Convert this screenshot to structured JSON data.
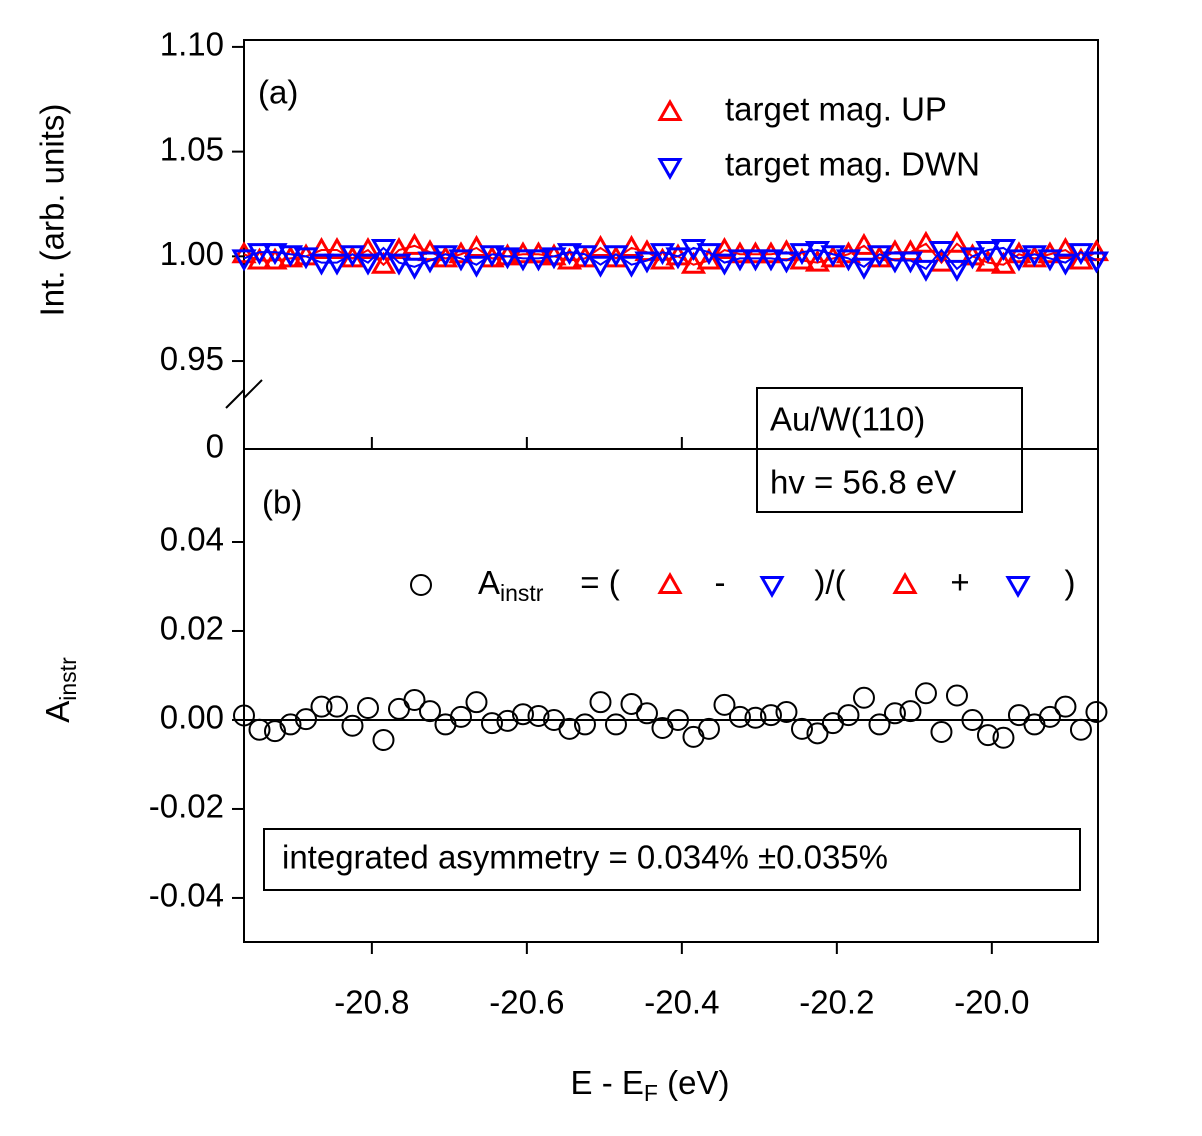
{
  "chart_data": [
    {
      "type": "line",
      "panel_label": "(a)",
      "ylabel": "Int. (arb. units)",
      "xlim": [
        -20.965,
        -19.863
      ],
      "ylim": [
        0.908,
        1.1033
      ],
      "yticks": [
        0.95,
        {
          "value": 1,
          "label": "1.00"
        },
        1.05,
        {
          "value": 1.1,
          "label": "1.10"
        }
      ],
      "break_tick": 0,
      "x": [
        -20.965,
        -20.945,
        -20.925,
        -20.905,
        -20.885,
        -20.865,
        -20.845,
        -20.825,
        -20.805,
        -20.785,
        -20.765,
        -20.745,
        -20.725,
        -20.705,
        -20.685,
        -20.665,
        -20.645,
        -20.625,
        -20.605,
        -20.585,
        -20.565,
        -20.545,
        -20.525,
        -20.505,
        -20.485,
        -20.465,
        -20.445,
        -20.425,
        -20.405,
        -20.385,
        -20.365,
        -20.345,
        -20.325,
        -20.305,
        -20.285,
        -20.265,
        -20.245,
        -20.225,
        -20.205,
        -20.185,
        -20.165,
        -20.145,
        -20.125,
        -20.105,
        -20.085,
        -20.065,
        -20.045,
        -20.025,
        -20.005,
        -19.985,
        -19.965,
        -19.945,
        -19.925,
        -19.905,
        -19.885,
        -19.865
      ],
      "series": [
        {
          "name": "target mag. UP",
          "color": "#ff0000",
          "marker": "triangle-up",
          "values": [
            1.001,
            0.998,
            0.998,
            0.999,
            1.0,
            1.003,
            1.003,
            0.999,
            1.003,
            0.996,
            1.003,
            1.005,
            1.002,
            0.999,
            1.001,
            1.004,
            0.999,
            1.0,
            1.001,
            1.001,
            1.0,
            0.998,
            0.999,
            1.004,
            0.999,
            1.004,
            1.002,
            0.998,
            1.0,
            0.996,
            0.998,
            1.003,
            1.001,
            1.001,
            1.001,
            1.002,
            0.998,
            0.997,
            0.999,
            1.001,
            1.005,
            0.999,
            1.002,
            1.002,
            1.006,
            0.997,
            1.006,
            1.0,
            0.997,
            0.996,
            1.001,
            0.999,
            1.001,
            1.003,
            0.998,
            1.002
          ]
        },
        {
          "name": "target mag. DWN",
          "color": "#0000ff",
          "marker": "triangle-down",
          "values": [
            0.999,
            1.002,
            1.002,
            1.001,
            1.0,
            0.997,
            0.997,
            1.001,
            0.997,
            1.004,
            0.997,
            0.995,
            0.998,
            1.001,
            0.999,
            0.996,
            1.001,
            1.0,
            0.999,
            0.999,
            1.0,
            1.002,
            1.001,
            0.996,
            1.001,
            0.996,
            0.998,
            1.002,
            1.0,
            1.004,
            1.002,
            0.997,
            0.999,
            0.999,
            0.999,
            0.998,
            1.002,
            1.003,
            1.001,
            0.999,
            0.995,
            1.001,
            0.998,
            0.998,
            0.994,
            1.003,
            0.994,
            1.0,
            1.003,
            1.004,
            0.999,
            1.001,
            0.999,
            0.997,
            1.002,
            0.998
          ]
        }
      ],
      "annotation": [
        "Au/W(110)",
        "hv = 56.8 eV"
      ]
    },
    {
      "type": "scatter",
      "panel_label": "(b)",
      "ylabel": "A",
      "ylabel_sub": "instr",
      "xlabel": [
        "E - E",
        "F",
        " (eV)"
      ],
      "xlim": [
        -20.965,
        -19.863
      ],
      "ylim": [
        -0.0499,
        0.0609
      ],
      "xticks": [
        -20.8,
        -20.6,
        -20.4,
        -20.2,
        {
          "value": -20,
          "label": "-20.0"
        }
      ],
      "yticks": [
        -0.04,
        -0.02,
        {
          "value": 0,
          "label": "0.00"
        },
        0.02,
        0.04
      ],
      "hline": 0,
      "x": [
        -20.965,
        -20.945,
        -20.925,
        -20.905,
        -20.885,
        -20.865,
        -20.845,
        -20.825,
        -20.805,
        -20.785,
        -20.765,
        -20.745,
        -20.725,
        -20.705,
        -20.685,
        -20.665,
        -20.645,
        -20.625,
        -20.605,
        -20.585,
        -20.565,
        -20.545,
        -20.525,
        -20.505,
        -20.485,
        -20.465,
        -20.445,
        -20.425,
        -20.405,
        -20.385,
        -20.365,
        -20.345,
        -20.325,
        -20.305,
        -20.285,
        -20.265,
        -20.245,
        -20.225,
        -20.205,
        -20.185,
        -20.165,
        -20.145,
        -20.125,
        -20.105,
        -20.085,
        -20.065,
        -20.045,
        -20.025,
        -20.005,
        -19.985,
        -19.965,
        -19.945,
        -19.925,
        -19.905,
        -19.885,
        -19.865
      ],
      "series": [
        {
          "name": "A",
          "name_sub": "instr",
          "color": "#000000",
          "marker": "circle",
          "formula": [
            "= (",
            "-",
            ")/(",
            "+",
            ")"
          ],
          "values": [
            0.001,
            -0.0022,
            -0.0025,
            -0.001,
            0.0002,
            0.003,
            0.003,
            -0.0013,
            0.0027,
            -0.0045,
            0.0025,
            0.0045,
            0.002,
            -0.001,
            0.0007,
            0.004,
            -0.0007,
            -0.0002,
            0.0013,
            0.0009,
            0.0,
            -0.002,
            -0.001,
            0.004,
            -0.001,
            0.0036,
            0.0015,
            -0.0018,
            0.0,
            -0.0038,
            -0.002,
            0.0034,
            0.0007,
            0.0005,
            0.0011,
            0.0018,
            -0.002,
            -0.003,
            -0.0007,
            0.0011,
            0.005,
            -0.001,
            0.0015,
            0.002,
            0.006,
            -0.0027,
            0.0055,
            0.0,
            -0.0034,
            -0.004,
            0.0011,
            -0.001,
            0.0007,
            0.003,
            -0.0022,
            0.0018
          ]
        }
      ],
      "annotation": "integrated asymmetry = 0.034% ±0.035%"
    }
  ]
}
